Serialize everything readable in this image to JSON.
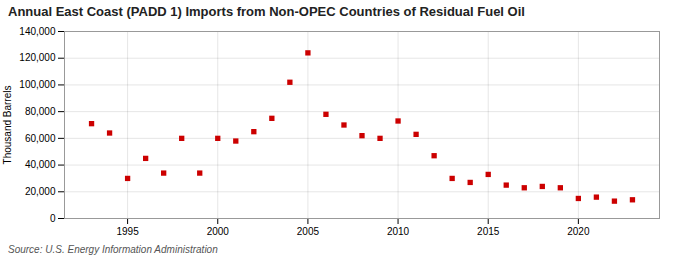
{
  "chart_data": {
    "type": "scatter",
    "title": "Annual East Coast (PADD 1) Imports from Non-OPEC Countries of Residual Fuel Oil",
    "ylabel": "Thousand Barrels",
    "source": "Source: U.S. Energy Information Administration",
    "x": [
      1993,
      1994,
      1995,
      1996,
      1997,
      1998,
      1999,
      2000,
      2001,
      2002,
      2003,
      2004,
      2005,
      2006,
      2007,
      2008,
      2009,
      2010,
      2011,
      2012,
      2013,
      2014,
      2015,
      2016,
      2017,
      2018,
      2019,
      2020,
      2021,
      2022,
      2023
    ],
    "values": [
      71000,
      64000,
      30000,
      45000,
      34000,
      60000,
      34000,
      60000,
      58000,
      65000,
      75000,
      102000,
      124000,
      78000,
      70000,
      62000,
      60000,
      73000,
      63000,
      47000,
      30000,
      27000,
      33000,
      25000,
      23000,
      24000,
      23000,
      15000,
      16000,
      13000,
      14000
    ],
    "color": "#cc0000",
    "marker": "square",
    "xlim": [
      1991.5,
      2024.5
    ],
    "xticks": [
      1995,
      2000,
      2005,
      2010,
      2015,
      2020
    ],
    "ylim": [
      0,
      140000
    ],
    "yticks": [
      0,
      {
        "value": 20000,
        "label": "20,000"
      },
      {
        "value": 40000,
        "label": "40,000"
      },
      {
        "value": 60000,
        "label": "60,000"
      },
      {
        "value": 80000,
        "label": "80,000"
      },
      {
        "value": 100000,
        "label": "100,000"
      },
      {
        "value": 120000,
        "label": "120,000"
      },
      {
        "value": 140000,
        "label": "140,000"
      }
    ],
    "grid": true
  }
}
